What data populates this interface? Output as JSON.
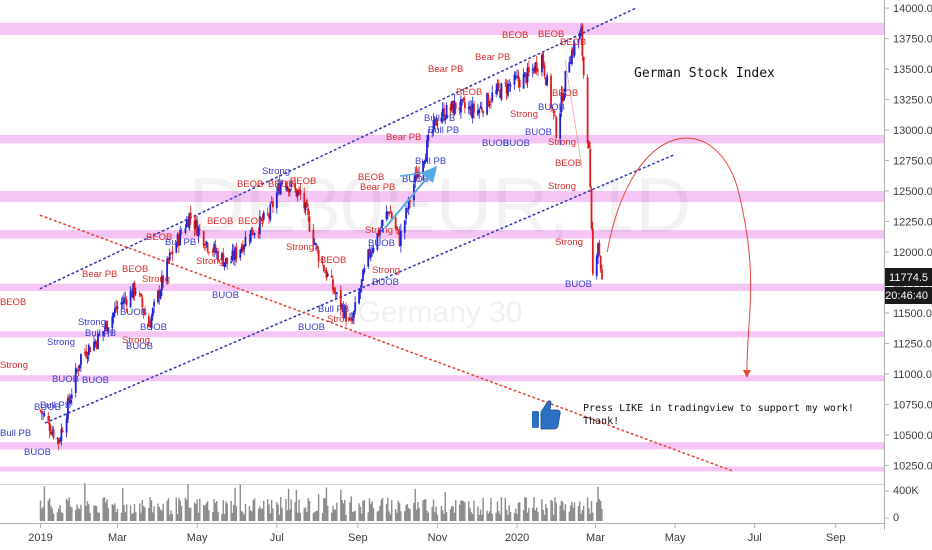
{
  "colors": {
    "zone": "#f5c6f5",
    "up_candle": "#1f1fd6",
    "down_candle": "#e01a1a",
    "channel": "#3a3ab8",
    "trend_down": "#e8463a",
    "projection": "#e8463a",
    "arrow_blue": "#5aa8e0",
    "last_price_bg": "#1a1a1a",
    "volume": "#8a8a8a"
  },
  "annotations": {
    "title": "German Stock Index",
    "like_line1": "Press LIKE in tradingview to support my work!",
    "like_line2": "Thank!",
    "watermark_symbol": "DE30EUR, 1D",
    "watermark_name": "Germany 30"
  },
  "price_axis": {
    "ticks": [
      "14000.0",
      "13750.0",
      "13500.0",
      "13250.0",
      "13000.0",
      "12750.0",
      "12500.0",
      "12250.0",
      "12000.0",
      "11750.0",
      "11500.0",
      "11250.0",
      "11000.0",
      "10750.0",
      "10500.0",
      "10250.0"
    ],
    "last_price": "11774.5",
    "countdown": "20:46:40"
  },
  "volume_axis": {
    "ticks": [
      "400K",
      "0"
    ]
  },
  "time_axis": {
    "ticks": [
      "2019",
      "Mar",
      "May",
      "Jul",
      "Sep",
      "Nov",
      "2020",
      "Mar",
      "May",
      "Jul",
      "Sep"
    ]
  },
  "labels": {
    "bull_pb": "Bull PB",
    "bear_pb": "Bear PB",
    "buob": "BUOB",
    "beob": "BEOB",
    "strong": "Strong"
  },
  "chart_data": {
    "type": "candlestick",
    "y_range": [
      10130,
      14050
    ],
    "zones": [
      [
        13780,
        13880
      ],
      [
        12890,
        12960
      ],
      [
        12410,
        12500
      ],
      [
        12110,
        12180
      ],
      [
        11680,
        11740
      ],
      [
        11300,
        11350
      ],
      [
        10940,
        10990
      ],
      [
        10380,
        10440
      ],
      [
        10200,
        10240
      ]
    ],
    "close_path": [
      [
        "2019-01-01",
        10700
      ],
      [
        "2019-01-15",
        10450
      ],
      [
        "2019-02-01",
        11150
      ],
      [
        "2019-02-15",
        11300
      ],
      [
        "2019-03-01",
        11550
      ],
      [
        "2019-03-15",
        11700
      ],
      [
        "2019-03-25",
        11400
      ],
      [
        "2019-04-10",
        11950
      ],
      [
        "2019-04-25",
        12300
      ],
      [
        "2019-05-10",
        12050
      ],
      [
        "2019-05-25",
        11900
      ],
      [
        "2019-06-10",
        12150
      ],
      [
        "2019-06-25",
        12300
      ],
      [
        "2019-07-05",
        12600
      ],
      [
        "2019-07-20",
        12450
      ],
      [
        "2019-08-01",
        12000
      ],
      [
        "2019-08-15",
        11650
      ],
      [
        "2019-08-27",
        11400
      ],
      [
        "2019-09-10",
        12000
      ],
      [
        "2019-09-25",
        12350
      ],
      [
        "2019-10-03",
        12100
      ],
      [
        "2019-10-15",
        12600
      ],
      [
        "2019-11-01",
        13100
      ],
      [
        "2019-11-15",
        13200
      ],
      [
        "2019-12-01",
        13150
      ],
      [
        "2019-12-15",
        13300
      ],
      [
        "2020-01-01",
        13400
      ],
      [
        "2020-01-10",
        13450
      ],
      [
        "2020-01-20",
        13600
      ],
      [
        "2020-01-31",
        13000
      ],
      [
        "2020-02-10",
        13600
      ],
      [
        "2020-02-19",
        13790
      ],
      [
        "2020-02-25",
        12800
      ],
      [
        "2020-02-28",
        11800
      ],
      [
        "2020-03-03",
        12100
      ],
      [
        "2020-03-06",
        11774.5
      ]
    ],
    "channel_upper": [
      [
        "2019-01-01",
        11700
      ],
      [
        "2020-04-01",
        14000
      ]
    ],
    "channel_lower": [
      [
        "2019-01-05",
        10600
      ],
      [
        "2020-05-01",
        12800
      ]
    ],
    "downtrend": [
      [
        "2019-01-01",
        12300
      ],
      [
        "2020-06-15",
        10200
      ]
    ],
    "projection": [
      [
        "2020-03-10",
        12000
      ],
      [
        "2020-05-08",
        12800
      ],
      [
        "2020-06-25",
        11000
      ]
    ],
    "xlabel": "",
    "ylabel": ""
  }
}
